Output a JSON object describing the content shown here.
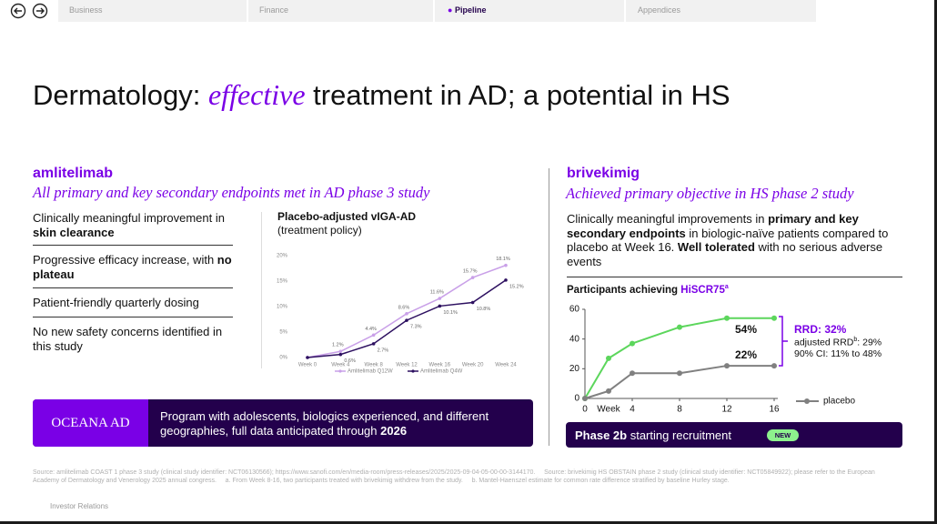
{
  "nav": {
    "tabs": [
      "Business",
      "Finance",
      "Pipeline",
      "Appendices"
    ]
  },
  "title": {
    "before": "Dermatology: ",
    "emphasis": "effective",
    "after": " treatment in AD; a potential in HS"
  },
  "left": {
    "heading": "amlitelimab",
    "subheading": "All primary and key secondary endpoints met in AD phase 3 study",
    "bullets": [
      [
        "Clinically meaningful improvement in ",
        "skin clearance"
      ],
      [
        "Progressive efficacy increase, with ",
        "no plateau"
      ],
      [
        "Patient-friendly quarterly dosing"
      ],
      [
        "No new safety concerns identified in this study"
      ]
    ],
    "banner": {
      "label": "OCEANA AD",
      "text": "Program with adolescents, biologics experienced, and different geographies, full data anticipated through ",
      "bold": "2026"
    }
  },
  "right": {
    "heading": "brivekimig",
    "subheading": "Achieved primary objective in HS phase 2 study",
    "paragraph": [
      "Clinically meaningful improvements in ",
      "primary and key secondary endpoints",
      " in biologic-naïve patients compared to placebo at Week 16. ",
      "Well tolerated",
      " with no serious adverse events"
    ],
    "annotation": {
      "rrd": "RRD: 32%",
      "adjusted": [
        "adjusted RRD",
        "b",
        ": 29%"
      ],
      "ci": "90% CI: 11% to 48%"
    },
    "banner": {
      "bold": "Phase 2b",
      "text": " starting recruitment",
      "badge": "NEW"
    }
  },
  "footnote": "Source: amlitelimab COAST 1 phase 3 study (clinical study identifier: NCT06130566); https://www.sanofi.com/en/media-room/press-releases/2025/2025-09-04-05-00-00-3144170.     Source: brivekimig HS OBSTAIN phase 2 study (clinical study identifier: NCT05849922); please refer to the European Academy of Dermatology and Venerology 2025 annual congress.     a. From Week 8-16, two participants treated with brivekimig withdrew from the study.     b. Mantel-Haenszel estimate for common rate difference stratified by baseline Hurley stage.",
  "footer": "Investor Relations",
  "chart_data": [
    {
      "type": "line",
      "title": "Placebo-adjusted vIGA-AD",
      "subtitle": "(treatment policy)",
      "categories": [
        "Week 0",
        "Week 4",
        "Week 8",
        "Week 12",
        "Week 16",
        "Week 20",
        "Week 24"
      ],
      "series": [
        {
          "name": "Amlitelimab Q12W",
          "color": "#c9a0e8",
          "values": [
            0,
            1.2,
            4.4,
            8.6,
            11.6,
            15.7,
            18.1
          ],
          "value_labels": [
            null,
            "1.2%",
            "4.4%",
            "8.6%",
            "11.6%",
            "15.7%",
            "18.1%"
          ]
        },
        {
          "name": "Amlitelimab Q4W",
          "color": "#2d1060",
          "values": [
            0,
            0.6,
            2.7,
            7.3,
            10.1,
            10.8,
            15.2
          ],
          "value_labels": [
            null,
            "0.6%",
            "2.7%",
            "7.3%",
            "10.1%",
            "10.8%",
            "15.2%"
          ]
        }
      ],
      "ylim": [
        0,
        20
      ],
      "yticks": [
        {
          "value": 0,
          "label": "0%"
        },
        {
          "value": 5,
          "label": "5%"
        },
        {
          "value": 10,
          "label": "10%"
        },
        {
          "value": 15,
          "label": "15%"
        },
        {
          "value": 20,
          "label": "20%"
        }
      ]
    },
    {
      "type": "line",
      "title": "Participants achieving ",
      "title_highlight": "HiSCR75",
      "title_note": "a",
      "x": [
        0,
        2,
        4,
        8,
        12,
        16
      ],
      "xlabel": "Week",
      "xlim": [
        0,
        16
      ],
      "xticks": [
        0,
        4,
        8,
        12,
        16
      ],
      "ylim": [
        0,
        60
      ],
      "yticks": [
        0,
        20,
        40,
        60
      ],
      "series": [
        {
          "color": "#5cd65c",
          "values": [
            0,
            27,
            37,
            48,
            54,
            54
          ],
          "value_labels": [
            null,
            null,
            null,
            null,
            null,
            "54%"
          ]
        },
        {
          "name": "placebo",
          "color": "#808080",
          "values": [
            0,
            5,
            17,
            17,
            22,
            22
          ],
          "value_labels": [
            null,
            null,
            null,
            null,
            null,
            "22%"
          ]
        }
      ]
    }
  ]
}
